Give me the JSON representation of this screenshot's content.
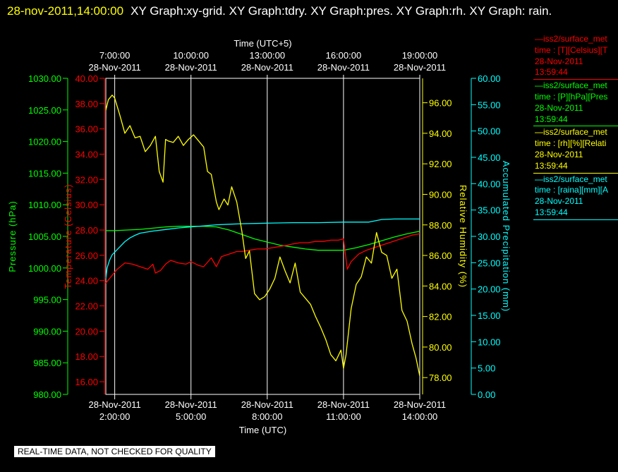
{
  "header": {
    "timestamp": "28-nov-2011,14:00:00",
    "titles": "XY Graph:xy-grid.  XY Graph:tdry.  XY Graph:pres.  XY Graph:rh.  XY Graph: rain."
  },
  "footer": {
    "notice": "REAL-TIME DATA, NOT CHECKED FOR QUALITY"
  },
  "colors": {
    "temperature": "#ff0000",
    "pressure": "#00ff00",
    "humidity": "#ffff00",
    "precipitation": "#00ffff",
    "grid": "#ffffff"
  },
  "legend": [
    {
      "name": "tdry",
      "color": "#ff0000",
      "lines": [
        "—iss2/surface_met",
        "time : [T][Celsius][T",
        "28-Nov-2011",
        "13:59:44"
      ]
    },
    {
      "name": "pres",
      "color": "#00ff00",
      "lines": [
        "—iss2/surface_met",
        "time : [P][hPa][Pres",
        "28-Nov-2011",
        "13:59:44"
      ]
    },
    {
      "name": "rh",
      "color": "#ffff00",
      "lines": [
        "—iss2/surface_met",
        "time : [rh][%][Relati",
        "28-Nov-2011",
        "13:59:44"
      ]
    },
    {
      "name": "rain",
      "color": "#00ffff",
      "lines": [
        "—iss2/surface_met",
        "time : [raina][mm][A",
        "28-Nov-2011",
        "13:59:44"
      ]
    }
  ],
  "chart_data": {
    "type": "line",
    "x_unit": "hours (UTC)",
    "xlim": [
      1.65,
      14.0
    ],
    "xlabel_bottom": "Time (UTC)",
    "xlabel_top": "Time (UTC+5)",
    "x_ticks_bottom": [
      {
        "x": 2,
        "date": "28-Nov-2011",
        "time": "2:00:00"
      },
      {
        "x": 5,
        "date": "28-Nov-2011",
        "time": "5:00:00"
      },
      {
        "x": 8,
        "date": "28-Nov-2011",
        "time": "8:00:00"
      },
      {
        "x": 11,
        "date": "28-Nov-2011",
        "time": "11:00:00"
      },
      {
        "x": 14,
        "date": "28-Nov-2011",
        "time": "14:00:00"
      }
    ],
    "x_ticks_top": [
      {
        "x": 2,
        "time": "7:00:00",
        "date": "28-Nov-2011"
      },
      {
        "x": 5,
        "time": "10:00:00",
        "date": "28-Nov-2011"
      },
      {
        "x": 8,
        "time": "13:00:00",
        "date": "28-Nov-2011"
      },
      {
        "x": 11,
        "time": "16:00:00",
        "date": "28-Nov-2011"
      },
      {
        "x": 14,
        "time": "19:00:00",
        "date": "28-Nov-2011"
      }
    ],
    "grid": true,
    "axes": [
      {
        "id": "pres",
        "label": "Pressure (hPa)",
        "color": "#00ff00",
        "ylim": [
          980,
          1030
        ],
        "ticks": [
          "980.00",
          "985.00",
          "990.00",
          "995.00",
          "1000.00",
          "1005.00",
          "1010.00",
          "1015.00",
          "1020.00",
          "1025.00",
          "1030.00"
        ]
      },
      {
        "id": "tdry",
        "label": "Temperature (Celsius)",
        "color": "#ff0000",
        "ylim": [
          15,
          40
        ],
        "ticks": [
          "16.00",
          "18.00",
          "20.00",
          "22.00",
          "24.00",
          "26.00",
          "28.00",
          "30.00",
          "32.00",
          "34.00",
          "36.00",
          "38.00",
          "40.00"
        ]
      },
      {
        "id": "rh",
        "label": "Relative Humidity (%)",
        "color": "#ffff00",
        "ylim": [
          76.9,
          97.6
        ],
        "ticks": [
          "78.00",
          "80.00",
          "82.00",
          "84.00",
          "86.00",
          "88.00",
          "90.00",
          "92.00",
          "94.00",
          "96.00"
        ]
      },
      {
        "id": "rain",
        "label": "Accumulated Precipitation (mm)",
        "color": "#00ffff",
        "ylim": [
          0,
          60
        ],
        "ticks": [
          "0.00",
          "5.00",
          "10.00",
          "15.00",
          "20.00",
          "25.00",
          "30.00",
          "35.00",
          "40.00",
          "45.00",
          "50.00",
          "55.00",
          "60.00"
        ]
      }
    ],
    "series": [
      {
        "name": "tdry",
        "axis": "tdry",
        "color": "#ff0000",
        "x": [
          1.65,
          1.85,
          2.1,
          2.4,
          2.7,
          3.0,
          3.3,
          3.5,
          3.6,
          3.8,
          4.0,
          4.2,
          4.5,
          4.8,
          5.0,
          5.3,
          5.5,
          5.8,
          6.0,
          6.2,
          6.5,
          6.8,
          7.0,
          7.3,
          7.6,
          7.9,
          8.2,
          8.5,
          8.8,
          9.0,
          9.3,
          9.6,
          9.9,
          10.2,
          10.5,
          10.8,
          11.0,
          11.15,
          11.3,
          11.6,
          11.9,
          12.2,
          12.5,
          12.8,
          13.1,
          13.4,
          13.7,
          14.0
        ],
        "y": [
          23.8,
          24.3,
          24.9,
          25.4,
          25.3,
          25.1,
          24.9,
          25.3,
          24.6,
          24.8,
          25.3,
          25.6,
          25.4,
          25.3,
          25.5,
          25.2,
          25.1,
          25.8,
          25.1,
          25.9,
          26.1,
          26.3,
          26.3,
          26.4,
          26.5,
          26.5,
          26.6,
          26.7,
          26.8,
          26.9,
          27.0,
          27.0,
          27.1,
          27.1,
          27.2,
          27.2,
          27.3,
          24.9,
          25.5,
          26.1,
          26.4,
          26.6,
          26.8,
          27.0,
          27.2,
          27.4,
          27.6,
          27.7
        ]
      },
      {
        "name": "pres",
        "axis": "pres",
        "color": "#00ff00",
        "x": [
          1.65,
          2.0,
          2.5,
          3.0,
          3.5,
          4.0,
          4.5,
          5.0,
          5.5,
          6.0,
          6.5,
          7.0,
          7.5,
          8.0,
          8.5,
          9.0,
          9.5,
          10.0,
          10.5,
          11.0,
          11.5,
          12.0,
          12.5,
          13.0,
          13.5,
          14.0
        ],
        "y": [
          1005.9,
          1005.9,
          1006.0,
          1006.1,
          1006.3,
          1006.5,
          1006.6,
          1006.6,
          1006.6,
          1006.5,
          1006.0,
          1005.3,
          1004.6,
          1004.1,
          1003.6,
          1003.3,
          1003.0,
          1002.8,
          1002.8,
          1002.8,
          1003.2,
          1003.7,
          1004.3,
          1004.9,
          1005.4,
          1005.8
        ]
      },
      {
        "name": "rh",
        "axis": "rh",
        "color": "#ffff00",
        "x": [
          1.65,
          1.75,
          1.9,
          2.0,
          2.2,
          2.4,
          2.6,
          2.8,
          3.0,
          3.2,
          3.4,
          3.6,
          3.75,
          3.9,
          4.0,
          4.1,
          4.3,
          4.5,
          4.7,
          4.9,
          5.1,
          5.3,
          5.5,
          5.65,
          5.8,
          6.0,
          6.1,
          6.3,
          6.45,
          6.6,
          6.8,
          7.0,
          7.15,
          7.3,
          7.5,
          7.7,
          7.9,
          8.1,
          8.3,
          8.5,
          8.7,
          8.9,
          9.1,
          9.3,
          9.5,
          9.7,
          9.9,
          10.1,
          10.3,
          10.5,
          10.7,
          10.9,
          11.0,
          11.1,
          11.3,
          11.5,
          11.7,
          11.9,
          12.1,
          12.3,
          12.5,
          12.7,
          12.9,
          13.1,
          13.3,
          13.5,
          13.7,
          13.85,
          14.0
        ],
        "y": [
          95.5,
          96.2,
          96.5,
          96.3,
          95.2,
          94.0,
          94.5,
          93.7,
          93.8,
          92.8,
          93.2,
          93.8,
          91.5,
          90.8,
          93.6,
          93.5,
          93.4,
          93.8,
          93.2,
          93.6,
          93.9,
          93.5,
          93.1,
          91.5,
          91.3,
          89.5,
          89.0,
          89.7,
          89.3,
          90.5,
          89.5,
          87.6,
          85.8,
          86.3,
          83.5,
          83.1,
          83.3,
          83.8,
          84.5,
          85.9,
          85.0,
          84.2,
          85.5,
          83.6,
          83.2,
          82.8,
          82.0,
          81.3,
          80.5,
          79.5,
          79.1,
          79.8,
          78.6,
          79.5,
          82.5,
          84.1,
          84.6,
          85.9,
          85.5,
          87.5,
          86.2,
          86.0,
          84.5,
          85.1,
          82.4,
          81.7,
          80.2,
          79.3,
          78.1
        ]
      },
      {
        "name": "rain",
        "axis": "rain",
        "color": "#00ffff",
        "x": [
          1.65,
          1.7,
          1.8,
          1.9,
          2.0,
          2.2,
          2.4,
          2.6,
          2.8,
          3.0,
          3.5,
          4.0,
          4.5,
          5.0,
          5.5,
          6.0,
          6.5,
          7.0,
          8.0,
          9.0,
          10.0,
          11.0,
          12.0,
          12.5,
          13.0,
          13.5,
          14.0
        ],
        "y": [
          22.0,
          24.0,
          25.5,
          26.5,
          27.0,
          28.0,
          29.0,
          29.7,
          30.2,
          30.6,
          31.0,
          31.3,
          31.6,
          31.8,
          32.0,
          32.2,
          32.3,
          32.4,
          32.5,
          32.6,
          32.6,
          32.7,
          32.7,
          33.2,
          33.3,
          33.3,
          33.3
        ]
      }
    ]
  }
}
